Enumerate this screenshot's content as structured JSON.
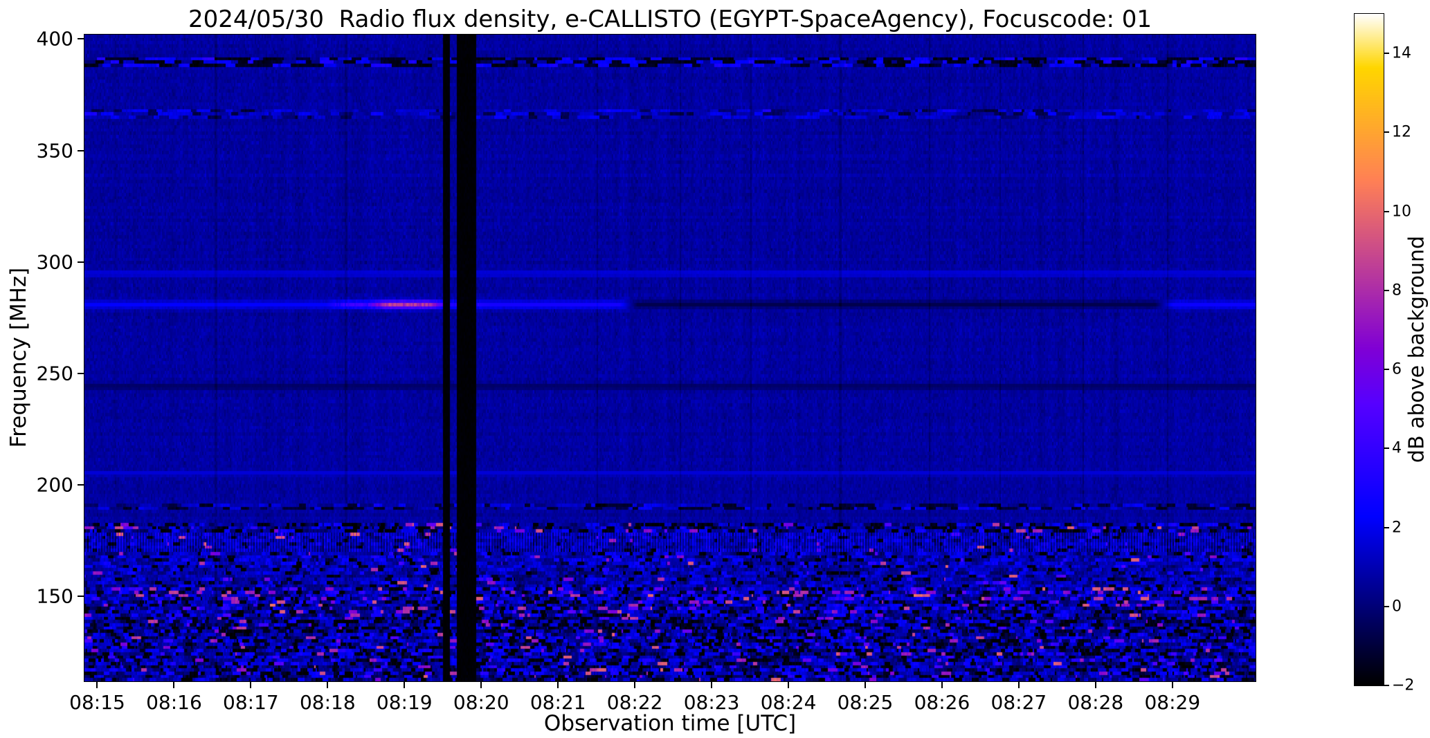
{
  "chart_data": {
    "type": "heatmap",
    "title": "2024/05/30  Radio flux density, e-CALLISTO (EGYPT-SpaceAgency), Focuscode: 01",
    "xlabel": "Observation time [UTC]",
    "ylabel": "Frequency [MHz]",
    "colorbar_label": "dB above background",
    "colormap": "gnuplot2",
    "value_range_db": [
      -2,
      15
    ],
    "colorbar_ticks": [
      14,
      12,
      10,
      8,
      6,
      4,
      2,
      0,
      -2
    ],
    "y_ticks_mhz": [
      400,
      350,
      300,
      250,
      200,
      150
    ],
    "y_range_mhz": [
      112,
      402
    ],
    "x_ticks": [
      "08:15",
      "08:16",
      "08:17",
      "08:18",
      "08:19",
      "08:20",
      "08:21",
      "08:22",
      "08:23",
      "08:24",
      "08:25",
      "08:26",
      "08:27",
      "08:28",
      "08:29"
    ],
    "x_range_seconds_after_0800": [
      890,
      1805
    ],
    "background_level_db": 0.65,
    "legend_position": "right-colorbar",
    "grid": false,
    "features": {
      "bands": [
        {
          "name": "rfi-line-390mhz",
          "f0": 387.5,
          "f1": 392.5,
          "style": "dash",
          "p_black": 0.45,
          "p_bright": 0.28,
          "bright": 2.4,
          "dark": -1.5,
          "mean": 0.5,
          "std": 0.5
        },
        {
          "name": "noisy-band-367mhz",
          "f0": 364.5,
          "f1": 369.5,
          "style": "dash",
          "p_black": 0.1,
          "p_bright": 0.3,
          "bright": 1.8,
          "dark": -0.8,
          "mean": 0.8,
          "std": 0.5
        },
        {
          "name": "faint-line-295mhz",
          "freq": 295,
          "halfwidth": 1.2,
          "style": "gauss-line",
          "value": 1.8
        },
        {
          "name": "solar-burst-line-281mhz",
          "freq": 281,
          "halfwidth": 1.7,
          "style": "gauss-line-segments",
          "segments": [
            [
              890,
              1085,
              2.3
            ],
            [
              1085,
              1118,
              4.3
            ],
            [
              1118,
              1165,
              8.2
            ],
            [
              1165,
              1200,
              3.4
            ],
            [
              1200,
              1315,
              2.9
            ],
            [
              1315,
              1733,
              -0.7
            ],
            [
              1733,
              1805,
              2.6
            ]
          ]
        },
        {
          "name": "dark-line-245mhz",
          "freq": 244,
          "halfwidth": 1.2,
          "style": "gauss-line",
          "value": -0.5
        },
        {
          "name": "faint-line-205mhz",
          "freq": 205,
          "halfwidth": 1.2,
          "style": "gauss-line",
          "value": 1.6
        },
        {
          "name": "rfi-line-190mhz",
          "f0": 188.5,
          "f1": 192,
          "style": "dash",
          "p_black": 0.3,
          "p_bright": 0.22,
          "bright": 2.0,
          "dark": -1.2,
          "mean": 0.7,
          "std": 0.5
        }
      ],
      "bottom_bands": [
        {
          "f0": 179,
          "f1": 183,
          "p_black": 0.32,
          "p_pink": 0.05,
          "mean": 0.9,
          "std": 0.9
        },
        {
          "f0": 170,
          "f1": 179,
          "striped": true,
          "p_black": 0.06,
          "p_pink": 0.02,
          "mean": 1.0,
          "std": 0.6
        },
        {
          "f0": 162,
          "f1": 170,
          "p_black": 0.12,
          "p_pink": 0.02,
          "mean": 1.1,
          "std": 0.9
        },
        {
          "f0": 154,
          "f1": 162,
          "p_black": 0.1,
          "p_pink": 0.02,
          "mean": 0.9,
          "std": 0.8
        },
        {
          "f0": 147,
          "f1": 154,
          "p_black": 0.16,
          "p_pink": 0.1,
          "mean": 1.2,
          "std": 1.2
        },
        {
          "f0": 140,
          "f1": 147,
          "p_black": 0.2,
          "p_pink": 0.06,
          "mean": 0.9,
          "std": 1.1
        },
        {
          "f0": 133,
          "f1": 140,
          "p_black": 0.28,
          "p_pink": 0.035,
          "mean": 0.6,
          "std": 1.1
        },
        {
          "f0": 112,
          "f1": 133,
          "p_black": 0.22,
          "p_pink": 0.04,
          "mean": 0.9,
          "std": 1.2
        }
      ],
      "black_stripes_seconds": [
        [
          1170,
          1175
        ],
        [
          1180,
          1196
        ]
      ],
      "faint_dark_columns_seconds": [
        992,
        1094,
        1290,
        1355,
        1410,
        1480,
        1550,
        1605,
        1670,
        1736
      ],
      "pink_value_range": [
        4,
        10
      ],
      "black_value": -1.8
    }
  }
}
